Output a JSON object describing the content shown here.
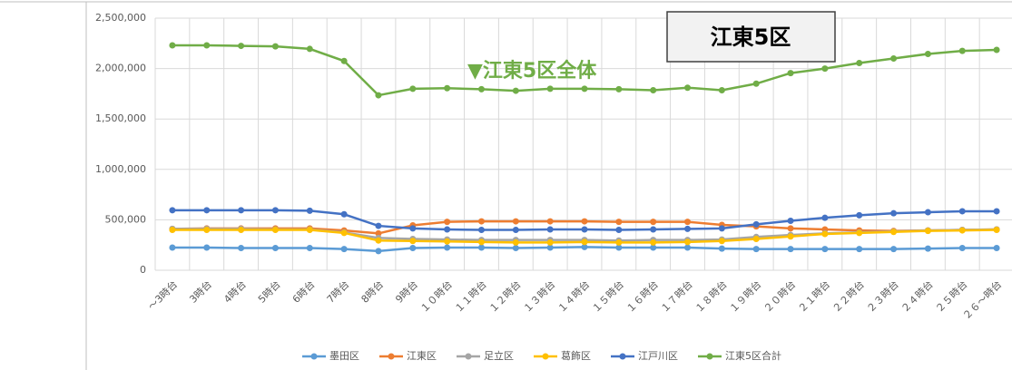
{
  "chart_data": {
    "type": "line",
    "categories": [
      "～3時台",
      "3時台",
      "4時台",
      "5時台",
      "6時台",
      "7時台",
      "8時台",
      "9時台",
      "１０時台",
      "１１時台",
      "１２時台",
      "１３時台",
      "１４時台",
      "１５時台",
      "１６時台",
      "１７時台",
      "１８時台",
      "１９時台",
      "２０時台",
      "２１時台",
      "２２時台",
      "２３時台",
      "２４時台",
      "２５時台",
      "２６～時台"
    ],
    "series": [
      {
        "name": "墨田区",
        "color": "#5b9bd5",
        "values": [
          225000,
          225000,
          220000,
          220000,
          220000,
          210000,
          190000,
          220000,
          225000,
          225000,
          220000,
          225000,
          230000,
          225000,
          225000,
          225000,
          215000,
          210000,
          210000,
          210000,
          210000,
          210000,
          215000,
          220000,
          220000
        ]
      },
      {
        "name": "江東区",
        "color": "#ed7d31",
        "values": [
          410000,
          415000,
          415000,
          415000,
          415000,
          395000,
          365000,
          445000,
          480000,
          485000,
          485000,
          485000,
          485000,
          480000,
          480000,
          480000,
          450000,
          435000,
          415000,
          405000,
          395000,
          390000,
          395000,
          400000,
          405000
        ]
      },
      {
        "name": "足立区",
        "color": "#a5a5a5",
        "values": [
          410000,
          410000,
          410000,
          405000,
          405000,
          375000,
          320000,
          310000,
          305000,
          300000,
          300000,
          300000,
          300000,
          295000,
          300000,
          300000,
          305000,
          330000,
          350000,
          365000,
          375000,
          385000,
          395000,
          400000,
          405000
        ]
      },
      {
        "name": "葛飾区",
        "color": "#ffc000",
        "values": [
          400000,
          400000,
          400000,
          400000,
          400000,
          370000,
          295000,
          290000,
          285000,
          280000,
          275000,
          275000,
          280000,
          275000,
          275000,
          280000,
          290000,
          310000,
          335000,
          360000,
          370000,
          380000,
          390000,
          395000,
          400000
        ]
      },
      {
        "name": "江戸川区",
        "color": "#4472c4",
        "values": [
          595000,
          595000,
          595000,
          595000,
          590000,
          555000,
          440000,
          415000,
          405000,
          400000,
          400000,
          405000,
          405000,
          400000,
          405000,
          410000,
          415000,
          455000,
          490000,
          520000,
          545000,
          565000,
          575000,
          585000,
          585000
        ]
      },
      {
        "name": "江東5区合計",
        "color": "#70ad47",
        "values": [
          2230000,
          2230000,
          2225000,
          2220000,
          2195000,
          2075000,
          1735000,
          1800000,
          1805000,
          1795000,
          1780000,
          1800000,
          1800000,
          1795000,
          1785000,
          1810000,
          1785000,
          1850000,
          1955000,
          2000000,
          2055000,
          2100000,
          2145000,
          2175000,
          2185000
        ]
      }
    ],
    "ylim": [
      0,
      2500000
    ],
    "yticks": [
      0,
      {
        "value": 500000,
        "label": "500,000"
      },
      {
        "value": 1000000,
        "label": "1,000,000"
      },
      {
        "value": 1500000,
        "label": "1,500,000"
      },
      {
        "value": 2000000,
        "label": "2,000,000"
      },
      {
        "value": 2500000,
        "label": "2,500,000"
      }
    ],
    "grid": true,
    "annotations": [
      "▼江東5区全体",
      "江東5区"
    ],
    "legend": "bottom"
  }
}
